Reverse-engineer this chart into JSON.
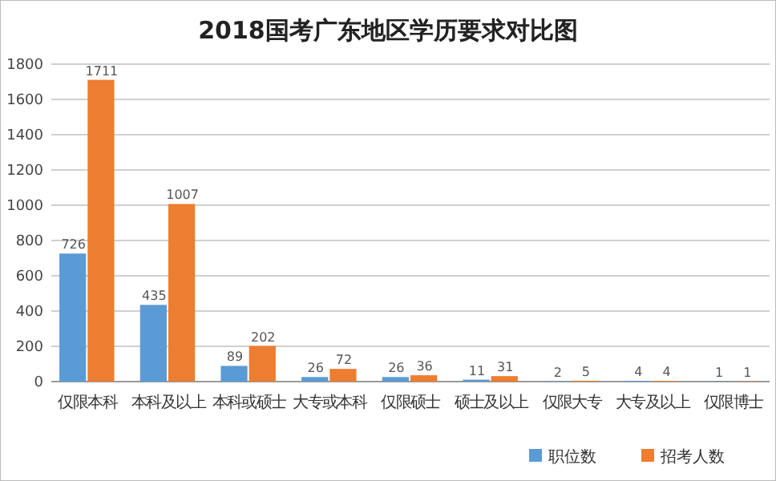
{
  "chart_data": {
    "type": "bar",
    "title": "2018国考广东地区学历要求对比图",
    "categories": [
      "仅限本科",
      "本科及以上",
      "本科或硕士",
      "大专或本科",
      "仅限硕士",
      "硕士及以上",
      "仅限大专",
      "大专及以上",
      "仅限博士"
    ],
    "series": [
      {
        "name": "职位数",
        "color": "#5b9bd5",
        "values": [
          726,
          435,
          89,
          26,
          26,
          11,
          2,
          4,
          1
        ]
      },
      {
        "name": "招考人数",
        "color": "#ed7d31",
        "values": [
          1711,
          1007,
          202,
          72,
          36,
          31,
          5,
          4,
          1
        ]
      }
    ],
    "ylim": [
      0,
      1800
    ],
    "yticks": [
      0,
      200,
      400,
      600,
      800,
      1000,
      1200,
      1400,
      1600,
      1800
    ],
    "grid": "y",
    "legend": "bottom right",
    "data_labels": true
  }
}
